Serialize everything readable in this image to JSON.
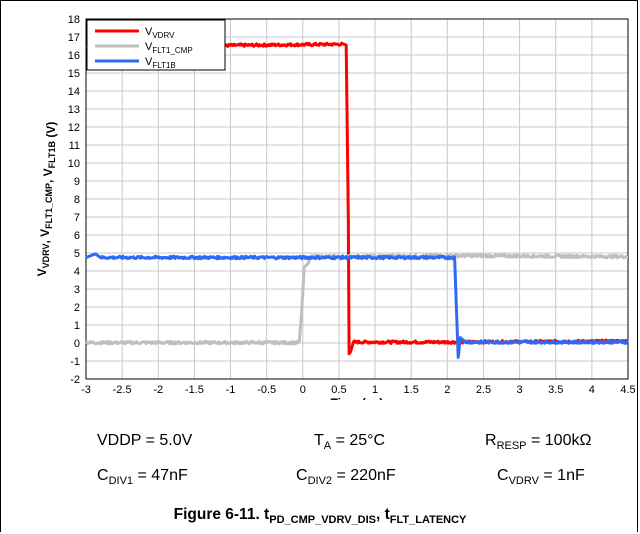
{
  "chart_data": {
    "type": "line",
    "xlabel": "Time (µs)",
    "ylabel": "VVDRV, VFLT1_CMP, VFLT1B (V)",
    "xlim": [
      -3,
      4.5
    ],
    "ylim": [
      -2,
      18
    ],
    "x_ticks": [
      -3,
      -2.5,
      -2,
      -1.5,
      -1,
      -0.5,
      0,
      0.5,
      1,
      1.5,
      2,
      2.5,
      3,
      3.5,
      4,
      4.5
    ],
    "y_ticks": [
      -2,
      -1,
      0,
      1,
      2,
      3,
      4,
      5,
      6,
      7,
      8,
      9,
      10,
      11,
      12,
      13,
      14,
      15,
      16,
      17,
      18
    ],
    "grid": true,
    "legend_position": "top-left",
    "series": [
      {
        "name": "VVDRV",
        "color": "#ff0000",
        "points": [
          [
            -3,
            16.45
          ],
          [
            0.55,
            16.6
          ],
          [
            0.6,
            16.55
          ],
          [
            0.63,
            7
          ],
          [
            0.64,
            -0.6
          ],
          [
            0.66,
            -0.5
          ],
          [
            0.7,
            0.05
          ],
          [
            1.5,
            0.05
          ],
          [
            2.1,
            0.05
          ],
          [
            4.5,
            0.1
          ]
        ]
      },
      {
        "name": "VFLT1_CMP",
        "color": "#bfbfbf",
        "points": [
          [
            -3,
            0.02
          ],
          [
            -0.05,
            0.02
          ],
          [
            -0.02,
            1.5
          ],
          [
            0.02,
            4.2
          ],
          [
            0.08,
            4.45
          ],
          [
            0.1,
            4.8
          ],
          [
            0.6,
            4.8
          ],
          [
            2.1,
            4.85
          ],
          [
            4.5,
            4.8
          ]
        ]
      },
      {
        "name": "VFLT1B",
        "color": "#2e6bf5",
        "points": [
          [
            -3,
            4.75
          ],
          [
            -2.87,
            4.95
          ],
          [
            -2.8,
            4.75
          ],
          [
            2.1,
            4.75
          ],
          [
            2.13,
            1.5
          ],
          [
            2.15,
            -0.8
          ],
          [
            2.18,
            0.3
          ],
          [
            2.25,
            0.05
          ],
          [
            4.5,
            0.05
          ]
        ]
      }
    ],
    "conditions": [
      "VDDP = 5.0V",
      "TA = 25°C",
      "RRESP = 100kΩ",
      "CDIV1 = 47nF",
      "CDIV2 = 220nF",
      "CVDRV = 1nF"
    ],
    "caption": "Figure 6-11. tPD_CMP_VDRV_DIS, tFLT_LATENCY"
  },
  "legend": {
    "items": [
      {
        "main": "V",
        "sub": "VDRV"
      },
      {
        "main": "V",
        "sub": "FLT1_CMP"
      },
      {
        "main": "V",
        "sub": "FLT1B"
      }
    ]
  },
  "axis": {
    "xlabel_main": "Time (",
    "xlabel_mu": "µ",
    "xlabel_tail": "s)",
    "ylabel_parts": [
      {
        "main": "V",
        "sub": "VDRV"
      },
      {
        "main": ", V",
        "sub": "FLT1_CMP"
      },
      {
        "main": ", V",
        "sub": "FLT1B"
      },
      {
        "main": " (V)",
        "sub": ""
      }
    ]
  },
  "params": {
    "vddp": "VDDP = 5.0V",
    "ta_main": "T",
    "ta_sub": "A",
    "ta_rest": " = 25°C",
    "rresp_main": "R",
    "rresp_sub": "RESP",
    "rresp_rest": " = 100kΩ",
    "cdiv1_main": "C",
    "cdiv1_sub": "DIV1",
    "cdiv1_rest": " = 47nF",
    "cdiv2_main": "C",
    "cdiv2_sub": "DIV2",
    "cdiv2_rest": " = 220nF",
    "cvdrv_main": "C",
    "cvdrv_sub": "VDRV",
    "cvdrv_rest": " = 1nF"
  },
  "caption": {
    "prefix": "Figure 6-11. t",
    "sub1": "PD_CMP_VDRV_DIS",
    "mid": ", t",
    "sub2": "FLT_LATENCY"
  }
}
